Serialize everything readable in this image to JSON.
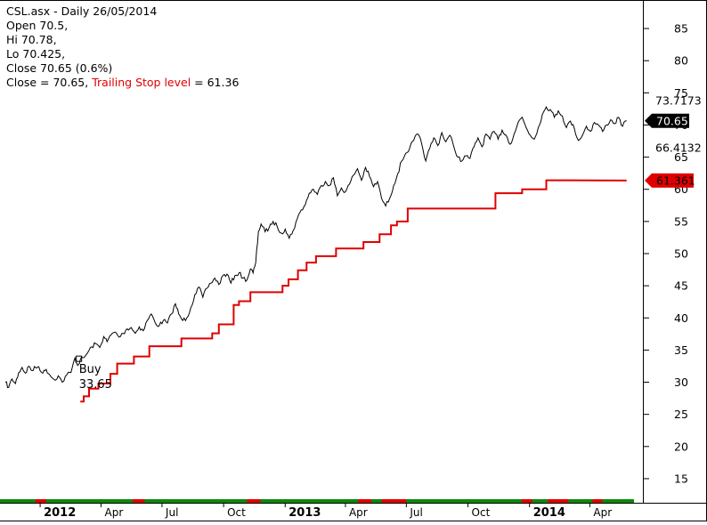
{
  "header": {
    "title_line": "CSL.asx - Daily 26/05/2014",
    "open_line": "Open 70.5,",
    "hi_line": "Hi 70.78,",
    "lo_line": "Lo 70.425,",
    "close_line": "Close 70.65 (0.6%)",
    "close_prefix": "Close = 70.65, ",
    "stop_label": "Trailing Stop level",
    "stop_value_text": " = 61.36"
  },
  "badges": {
    "upper": "73.7173",
    "close": "70.65",
    "lower": "66.4132",
    "stop": "61.361"
  },
  "annotation": {
    "buy_label": "Buy",
    "buy_price": "33.65"
  },
  "colors": {
    "price": "#000000",
    "stop": "#e00000",
    "bar_green": "#0a8a0a",
    "bar_red": "#e00000",
    "background": "#ffffff"
  },
  "chart_data": {
    "type": "line",
    "title": "CSL.asx - Daily 26/05/2014",
    "ylim": [
      12.5,
      87.5
    ],
    "yticks": [
      15,
      20,
      25,
      30,
      35,
      40,
      45,
      50,
      55,
      60,
      65,
      70,
      75,
      80,
      85
    ],
    "x_tick_labels": [
      "2012",
      "Apr",
      "Jul",
      "Oct",
      "2013",
      "Apr",
      "Jul",
      "Oct",
      "2014",
      "Apr"
    ],
    "x_tick_dates": [
      "2012-01-01",
      "2012-04-01",
      "2012-07-01",
      "2012-10-01",
      "2013-01-01",
      "2013-04-01",
      "2013-07-01",
      "2013-10-01",
      "2014-01-01",
      "2014-04-01"
    ],
    "x_range": [
      "2011-11-10",
      "2014-06-06"
    ],
    "series": [
      {
        "name": "Close",
        "points": [
          [
            "2011-11-10",
            30.0
          ],
          [
            "2011-11-15",
            29.2
          ],
          [
            "2011-11-20",
            30.5
          ],
          [
            "2011-11-25",
            29.8
          ],
          [
            "2011-11-30",
            31.5
          ],
          [
            "2011-12-05",
            32.3
          ],
          [
            "2011-12-10",
            31.4
          ],
          [
            "2011-12-15",
            32.5
          ],
          [
            "2011-12-20",
            31.8
          ],
          [
            "2011-12-25",
            32.3
          ],
          [
            "2011-12-30",
            32.4
          ],
          [
            "2012-01-05",
            31.4
          ],
          [
            "2012-01-10",
            32.0
          ],
          [
            "2012-01-15",
            31.2
          ],
          [
            "2012-01-22",
            30.4
          ],
          [
            "2012-01-28",
            31.0
          ],
          [
            "2012-02-03",
            30.0
          ],
          [
            "2012-02-10",
            31.2
          ],
          [
            "2012-02-16",
            31.5
          ],
          [
            "2012-02-22",
            33.8
          ],
          [
            "2012-02-26",
            32.6
          ],
          [
            "2012-03-01",
            33.5
          ],
          [
            "2012-03-06",
            33.8
          ],
          [
            "2012-03-12",
            34.6
          ],
          [
            "2012-03-18",
            35.5
          ],
          [
            "2012-03-24",
            36.0
          ],
          [
            "2012-03-30",
            35.4
          ],
          [
            "2012-04-05",
            37.1
          ],
          [
            "2012-04-10",
            36.3
          ],
          [
            "2012-04-16",
            37.4
          ],
          [
            "2012-04-22",
            37.8
          ],
          [
            "2012-04-28",
            37.0
          ],
          [
            "2012-05-04",
            37.6
          ],
          [
            "2012-05-10",
            38.3
          ],
          [
            "2012-05-16",
            38.5
          ],
          [
            "2012-05-22",
            37.6
          ],
          [
            "2012-05-28",
            38.6
          ],
          [
            "2012-06-03",
            38.0
          ],
          [
            "2012-06-09",
            39.6
          ],
          [
            "2012-06-15",
            40.6
          ],
          [
            "2012-06-21",
            39.2
          ],
          [
            "2012-06-27",
            38.8
          ],
          [
            "2012-07-03",
            39.6
          ],
          [
            "2012-07-09",
            39.2
          ],
          [
            "2012-07-15",
            40.6
          ],
          [
            "2012-07-21",
            42.2
          ],
          [
            "2012-07-26",
            40.6
          ],
          [
            "2012-08-01",
            39.6
          ],
          [
            "2012-08-07",
            40.0
          ],
          [
            "2012-08-13",
            41.6
          ],
          [
            "2012-08-19",
            43.6
          ],
          [
            "2012-08-25",
            44.8
          ],
          [
            "2012-08-31",
            43.2
          ],
          [
            "2012-09-06",
            44.6
          ],
          [
            "2012-09-12",
            45.4
          ],
          [
            "2012-09-18",
            46.2
          ],
          [
            "2012-09-24",
            45.2
          ],
          [
            "2012-09-30",
            46.6
          ],
          [
            "2012-10-06",
            46.8
          ],
          [
            "2012-10-12",
            45.4
          ],
          [
            "2012-10-18",
            46.6
          ],
          [
            "2012-10-24",
            47.0
          ],
          [
            "2012-10-30",
            46.2
          ],
          [
            "2012-11-05",
            45.9
          ],
          [
            "2012-11-10",
            47.6
          ],
          [
            "2012-11-14",
            47.0
          ],
          [
            "2012-11-18",
            48.6
          ],
          [
            "2012-11-22",
            53.4
          ],
          [
            "2012-11-26",
            54.6
          ],
          [
            "2012-12-02",
            53.4
          ],
          [
            "2012-12-08",
            54.0
          ],
          [
            "2012-12-14",
            55.0
          ],
          [
            "2012-12-20",
            54.2
          ],
          [
            "2012-12-26",
            53.2
          ],
          [
            "2013-01-01",
            53.8
          ],
          [
            "2013-01-07",
            52.4
          ],
          [
            "2013-01-13",
            53.6
          ],
          [
            "2013-01-19",
            55.4
          ],
          [
            "2013-01-25",
            56.8
          ],
          [
            "2013-01-31",
            57.6
          ],
          [
            "2013-02-06",
            59.4
          ],
          [
            "2013-02-12",
            60.0
          ],
          [
            "2013-02-18",
            59.2
          ],
          [
            "2013-02-24",
            60.6
          ],
          [
            "2013-03-02",
            61.2
          ],
          [
            "2013-03-08",
            60.6
          ],
          [
            "2013-03-14",
            61.8
          ],
          [
            "2013-03-20",
            59.0
          ],
          [
            "2013-03-26",
            60.2
          ],
          [
            "2013-04-01",
            59.6
          ],
          [
            "2013-04-07",
            60.8
          ],
          [
            "2013-04-13",
            62.2
          ],
          [
            "2013-04-19",
            63.2
          ],
          [
            "2013-04-25",
            61.4
          ],
          [
            "2013-05-01",
            63.4
          ],
          [
            "2013-05-07",
            62.0
          ],
          [
            "2013-05-13",
            60.4
          ],
          [
            "2013-05-19",
            61.2
          ],
          [
            "2013-05-25",
            58.6
          ],
          [
            "2013-05-31",
            57.4
          ],
          [
            "2013-06-06",
            58.6
          ],
          [
            "2013-06-12",
            60.6
          ],
          [
            "2013-06-18",
            62.4
          ],
          [
            "2013-06-24",
            64.4
          ],
          [
            "2013-06-30",
            65.6
          ],
          [
            "2013-07-06",
            66.4
          ],
          [
            "2013-07-12",
            67.6
          ],
          [
            "2013-07-18",
            68.6
          ],
          [
            "2013-07-24",
            67.0
          ],
          [
            "2013-07-30",
            64.4
          ],
          [
            "2013-08-05",
            66.4
          ],
          [
            "2013-08-11",
            68.0
          ],
          [
            "2013-08-17",
            66.8
          ],
          [
            "2013-08-23",
            68.8
          ],
          [
            "2013-08-29",
            67.4
          ],
          [
            "2013-09-04",
            68.4
          ],
          [
            "2013-09-10",
            66.6
          ],
          [
            "2013-09-16",
            65.0
          ],
          [
            "2013-09-22",
            64.4
          ],
          [
            "2013-09-28",
            65.2
          ],
          [
            "2013-10-04",
            64.8
          ],
          [
            "2013-10-10",
            66.6
          ],
          [
            "2013-10-16",
            68.0
          ],
          [
            "2013-10-22",
            66.6
          ],
          [
            "2013-10-28",
            68.6
          ],
          [
            "2013-11-03",
            67.8
          ],
          [
            "2013-11-09",
            69.0
          ],
          [
            "2013-11-15",
            67.8
          ],
          [
            "2013-11-21",
            69.2
          ],
          [
            "2013-11-27",
            68.4
          ],
          [
            "2013-12-03",
            67.0
          ],
          [
            "2013-12-09",
            68.6
          ],
          [
            "2013-12-15",
            70.4
          ],
          [
            "2013-12-21",
            71.2
          ],
          [
            "2013-12-27",
            69.6
          ],
          [
            "2014-01-02",
            68.4
          ],
          [
            "2014-01-08",
            67.8
          ],
          [
            "2014-01-14",
            69.6
          ],
          [
            "2014-01-20",
            71.6
          ],
          [
            "2014-01-26",
            72.8
          ],
          [
            "2014-02-01",
            72.4
          ],
          [
            "2014-02-07",
            71.2
          ],
          [
            "2014-02-13",
            72.2
          ],
          [
            "2014-02-19",
            71.4
          ],
          [
            "2014-02-25",
            69.6
          ],
          [
            "2014-03-03",
            70.6
          ],
          [
            "2014-03-09",
            69.4
          ],
          [
            "2014-03-15",
            67.6
          ],
          [
            "2014-03-21",
            68.4
          ],
          [
            "2014-03-27",
            69.8
          ],
          [
            "2014-04-02",
            69.0
          ],
          [
            "2014-04-08",
            70.4
          ],
          [
            "2014-04-14",
            70.0
          ],
          [
            "2014-04-20",
            69.0
          ],
          [
            "2014-04-26",
            70.0
          ],
          [
            "2014-05-02",
            70.8
          ],
          [
            "2014-05-08",
            70.2
          ],
          [
            "2014-05-14",
            71.2
          ],
          [
            "2014-05-20",
            69.8
          ],
          [
            "2014-05-26",
            70.65
          ]
        ]
      },
      {
        "name": "Trailing Stop level",
        "points": [
          [
            "2012-03-01",
            27.0
          ],
          [
            "2012-03-06",
            27.0
          ],
          [
            "2012-03-06",
            27.8
          ],
          [
            "2012-03-14",
            27.8
          ],
          [
            "2012-03-14",
            29.0
          ],
          [
            "2012-03-28",
            29.0
          ],
          [
            "2012-03-28",
            29.8
          ],
          [
            "2012-04-15",
            29.8
          ],
          [
            "2012-04-15",
            31.3
          ],
          [
            "2012-04-25",
            31.3
          ],
          [
            "2012-04-25",
            32.9
          ],
          [
            "2012-05-20",
            32.9
          ],
          [
            "2012-05-20",
            34.0
          ],
          [
            "2012-06-12",
            34.0
          ],
          [
            "2012-06-12",
            35.6
          ],
          [
            "2012-07-30",
            35.6
          ],
          [
            "2012-07-30",
            36.8
          ],
          [
            "2012-09-14",
            36.8
          ],
          [
            "2012-09-14",
            37.6
          ],
          [
            "2012-09-24",
            37.6
          ],
          [
            "2012-09-24",
            39.0
          ],
          [
            "2012-10-16",
            39.0
          ],
          [
            "2012-10-16",
            42.0
          ],
          [
            "2012-10-24",
            42.0
          ],
          [
            "2012-10-24",
            42.6
          ],
          [
            "2012-11-10",
            42.6
          ],
          [
            "2012-11-10",
            44.0
          ],
          [
            "2012-12-28",
            44.0
          ],
          [
            "2012-12-28",
            45.0
          ],
          [
            "2013-01-06",
            45.0
          ],
          [
            "2013-01-06",
            46.0
          ],
          [
            "2013-01-20",
            46.0
          ],
          [
            "2013-01-20",
            47.4
          ],
          [
            "2013-02-02",
            47.4
          ],
          [
            "2013-02-02",
            48.6
          ],
          [
            "2013-02-16",
            48.6
          ],
          [
            "2013-02-16",
            49.6
          ],
          [
            "2013-03-18",
            49.6
          ],
          [
            "2013-03-18",
            50.8
          ],
          [
            "2013-04-28",
            50.8
          ],
          [
            "2013-04-28",
            51.8
          ],
          [
            "2013-05-22",
            51.8
          ],
          [
            "2013-05-22",
            53.0
          ],
          [
            "2013-06-08",
            53.0
          ],
          [
            "2013-06-08",
            54.4
          ],
          [
            "2013-06-17",
            54.4
          ],
          [
            "2013-06-17",
            55.0
          ],
          [
            "2013-07-03",
            55.0
          ],
          [
            "2013-07-03",
            57.0
          ],
          [
            "2013-11-11",
            57.0
          ],
          [
            "2013-11-11",
            59.4
          ],
          [
            "2013-12-21",
            59.4
          ],
          [
            "2013-12-21",
            60.0
          ],
          [
            "2014-01-26",
            60.0
          ],
          [
            "2014-01-26",
            61.4
          ],
          [
            "2014-02-28",
            61.4
          ],
          [
            "2014-05-26",
            61.36
          ]
        ]
      }
    ],
    "marker": {
      "label": "Buy",
      "value": 33.65,
      "date": "2012-02-28"
    },
    "legend": "none",
    "grid": false
  }
}
